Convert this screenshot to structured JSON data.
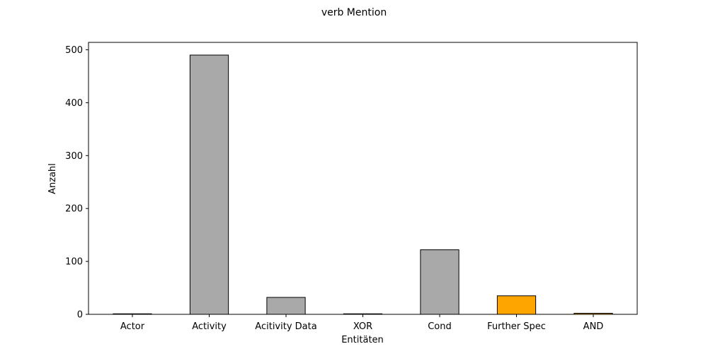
{
  "chart_data": {
    "type": "bar",
    "title": "verb Mention",
    "xlabel": "Entitäten",
    "ylabel": "Anzahl",
    "categories": [
      "Actor",
      "Activity",
      "Acitivity Data",
      "XOR",
      "Cond",
      "Further Spec",
      "AND"
    ],
    "values": [
      1,
      490,
      32,
      1,
      122,
      35,
      2
    ],
    "bar_colors": [
      "#a9a9a9",
      "#a9a9a9",
      "#a9a9a9",
      "#a9a9a9",
      "#a9a9a9",
      "#ffa500",
      "#ffa500"
    ],
    "ylim": [
      0,
      514
    ],
    "yticks": [
      0,
      100,
      200,
      300,
      400,
      500
    ],
    "grid": false,
    "legend": "none"
  }
}
